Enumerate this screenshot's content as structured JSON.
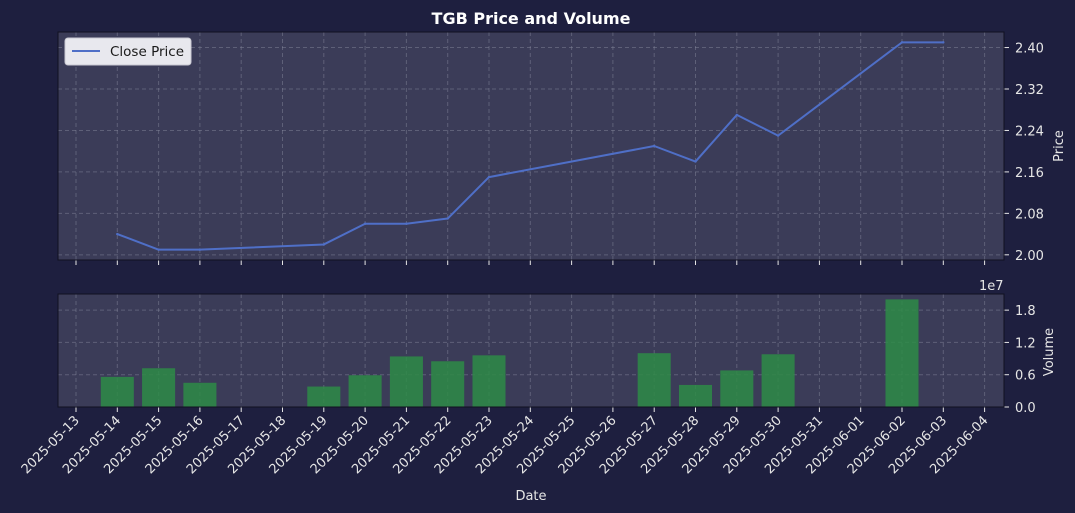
{
  "chart_data": {
    "title": "TGB Price and Volume",
    "type": "line",
    "xlabel": "Date",
    "x_ticks": [
      "2025-05-13",
      "2025-05-14",
      "2025-05-15",
      "2025-05-16",
      "2025-05-17",
      "2025-05-18",
      "2025-05-19",
      "2025-05-20",
      "2025-05-21",
      "2025-05-22",
      "2025-05-23",
      "2025-05-24",
      "2025-05-25",
      "2025-05-26",
      "2025-05-27",
      "2025-05-28",
      "2025-05-29",
      "2025-05-30",
      "2025-05-31",
      "2025-06-01",
      "2025-06-02",
      "2025-06-03",
      "2025-06-04"
    ],
    "price": {
      "ylabel": "Price",
      "ylim": [
        1.99,
        2.43
      ],
      "y_ticks": [
        "2.00",
        "2.08",
        "2.16",
        "2.24",
        "2.32",
        "2.40"
      ],
      "legend": "Close Price",
      "legend_position": "top-left",
      "color": "#4f6fc7",
      "points": [
        {
          "date": "2025-05-14",
          "value": 2.04
        },
        {
          "date": "2025-05-15",
          "value": 2.01
        },
        {
          "date": "2025-05-16",
          "value": 2.01
        },
        {
          "date": "2025-05-19",
          "value": 2.02
        },
        {
          "date": "2025-05-20",
          "value": 2.06
        },
        {
          "date": "2025-05-21",
          "value": 2.06
        },
        {
          "date": "2025-05-22",
          "value": 2.07
        },
        {
          "date": "2025-05-23",
          "value": 2.15
        },
        {
          "date": "2025-05-27",
          "value": 2.21
        },
        {
          "date": "2025-05-28",
          "value": 2.18
        },
        {
          "date": "2025-05-29",
          "value": 2.27
        },
        {
          "date": "2025-05-30",
          "value": 2.23
        },
        {
          "date": "2025-06-02",
          "value": 2.41
        },
        {
          "date": "2025-06-03",
          "value": 2.41
        }
      ]
    },
    "volume": {
      "type": "bar",
      "ylabel": "Volume",
      "scale_label": "1e7",
      "ylim": [
        0,
        2.1
      ],
      "y_ticks": [
        "0.0",
        "0.6",
        "1.2",
        "1.8"
      ],
      "color": "#2e8b46",
      "bars": [
        {
          "date": "2025-05-14",
          "value": 0.56
        },
        {
          "date": "2025-05-15",
          "value": 0.72
        },
        {
          "date": "2025-05-16",
          "value": 0.45
        },
        {
          "date": "2025-05-19",
          "value": 0.38
        },
        {
          "date": "2025-05-20",
          "value": 0.59
        },
        {
          "date": "2025-05-21",
          "value": 0.94
        },
        {
          "date": "2025-05-22",
          "value": 0.85
        },
        {
          "date": "2025-05-23",
          "value": 0.96
        },
        {
          "date": "2025-05-27",
          "value": 1.0
        },
        {
          "date": "2025-05-28",
          "value": 0.41
        },
        {
          "date": "2025-05-29",
          "value": 0.68
        },
        {
          "date": "2025-05-30",
          "value": 0.98
        },
        {
          "date": "2025-06-02",
          "value": 2.0
        }
      ]
    },
    "grid": true
  }
}
